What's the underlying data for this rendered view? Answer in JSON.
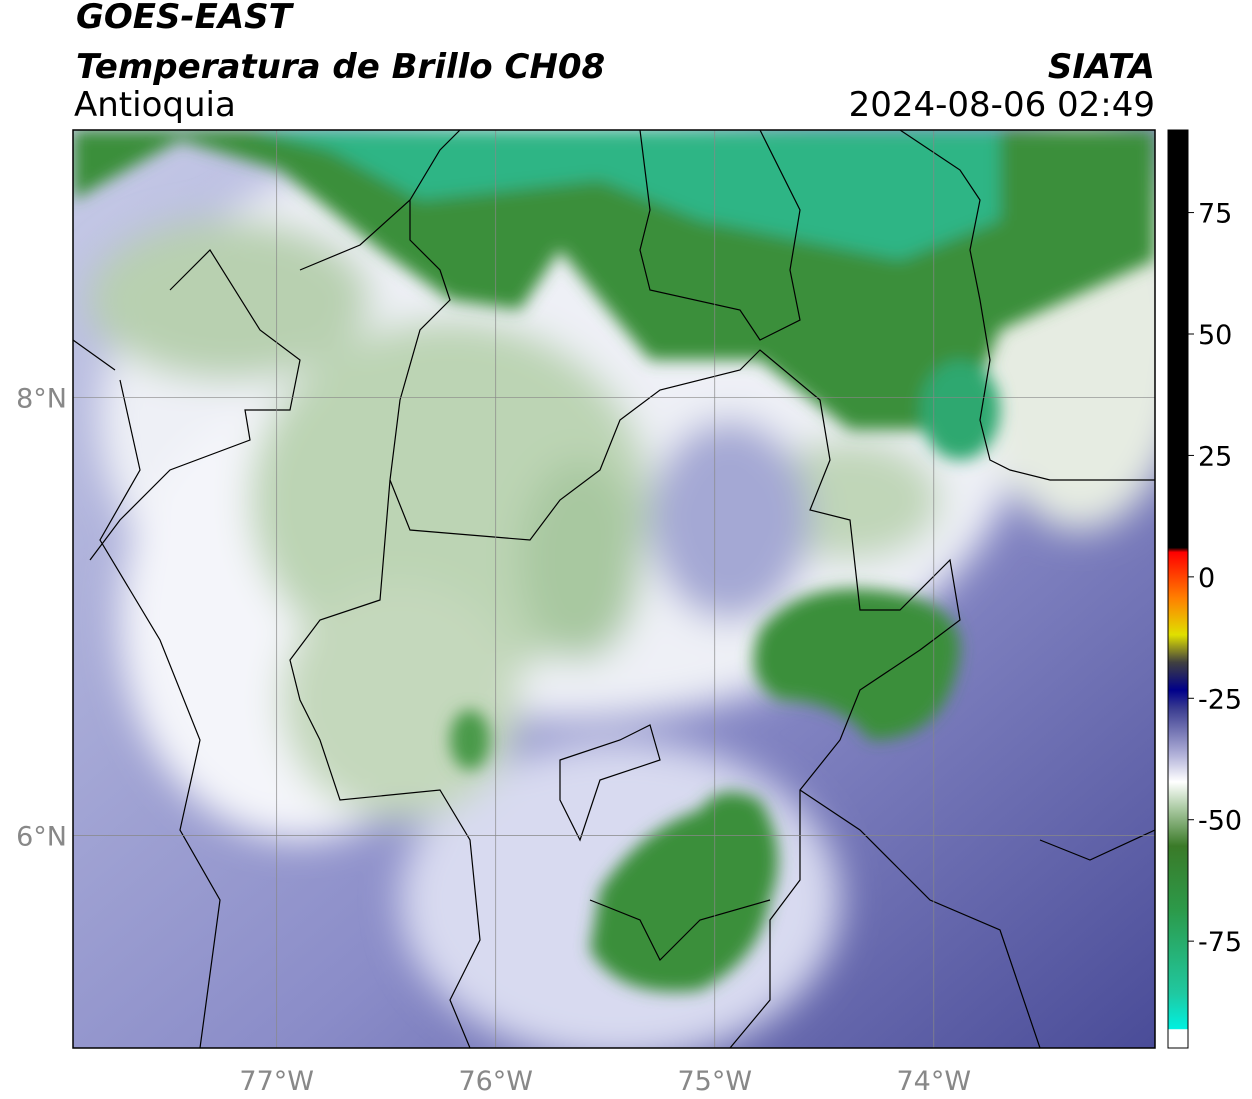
{
  "chart_data": {
    "type": "map",
    "title": "GOES-EAST",
    "subtitle": "Temperatura de Brillo CH08",
    "region": "Antioquia",
    "source": "SIATA",
    "datetime": "2024-08-06 02:49",
    "xlim": [
      -77.93,
      -72.99
    ],
    "ylim": [
      5.03,
      9.22
    ],
    "xticks": [
      {
        "value": -77,
        "label": "77°W"
      },
      {
        "value": -76,
        "label": "76°W"
      },
      {
        "value": -75,
        "label": "75°W"
      },
      {
        "value": -74,
        "label": "74°W"
      }
    ],
    "yticks": [
      {
        "value": 8,
        "label": "8°N"
      },
      {
        "value": 6,
        "label": "6°N"
      }
    ],
    "grid": true,
    "clim": [
      -97,
      92
    ],
    "cticks": [
      75,
      50,
      25,
      0,
      -25,
      -50,
      -75
    ]
  }
}
